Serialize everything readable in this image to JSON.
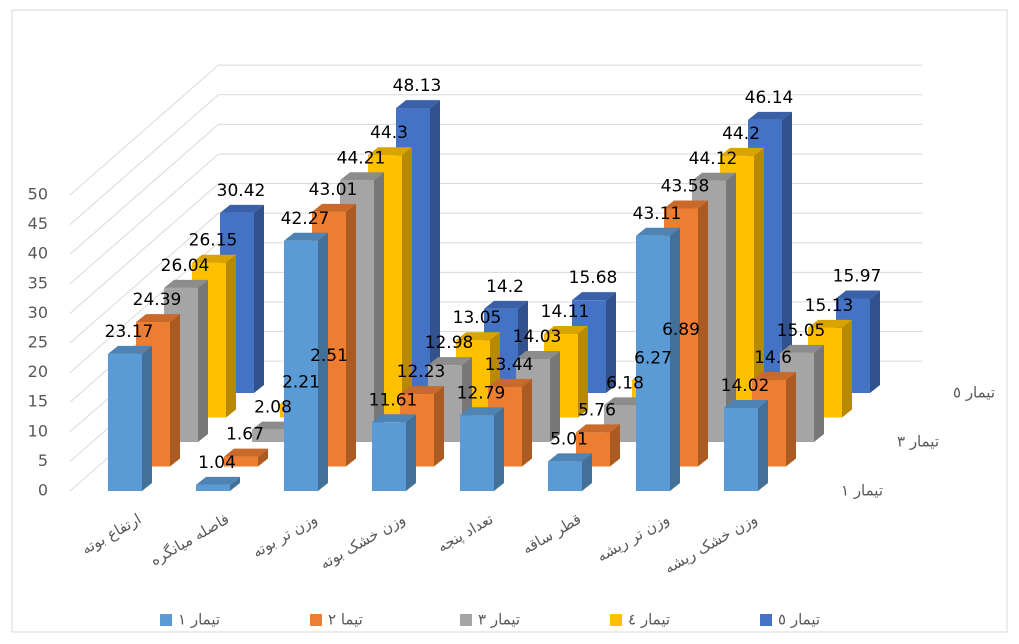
{
  "chart_data": {
    "type": "bar3d",
    "categories": [
      "ارتفاع بوته",
      "فاصله میانگره",
      "وزن تر بوته",
      "وزن خشک بوته",
      "تعداد پنجه",
      "قطر ساقه",
      "وزن تر ریشه",
      "وزن خشک ریشه"
    ],
    "series": [
      {
        "name": "تیمار ۱",
        "color": "#5b9bd5",
        "values": [
          23.17,
          1.04,
          42.27,
          11.61,
          12.79,
          5.01,
          43.11,
          14.02
        ]
      },
      {
        "name": "تیما ۲",
        "color": "#ed7d31",
        "values": [
          24.39,
          1.67,
          43.01,
          12.23,
          13.44,
          5.76,
          43.58,
          14.6
        ]
      },
      {
        "name": "تیمار ۳",
        "color": "#a5a5a5",
        "values": [
          26.04,
          2.08,
          44.21,
          12.98,
          14.03,
          6.18,
          44.12,
          15.05
        ]
      },
      {
        "name": "تیمار ٤",
        "color": "#ffc000",
        "values": [
          26.15,
          2.21,
          44.3,
          13.05,
          14.11,
          6.27,
          44.2,
          15.13
        ]
      },
      {
        "name": "تیمار ٥",
        "color": "#4472c4",
        "values": [
          30.42,
          2.51,
          48.13,
          14.2,
          15.68,
          6.89,
          46.14,
          15.97
        ]
      }
    ],
    "ylim": [
      0,
      50
    ],
    "yticks": [
      0,
      5,
      10,
      15,
      20,
      25,
      30,
      35,
      40,
      45,
      50
    ],
    "grid": true,
    "legend": "bottom"
  }
}
